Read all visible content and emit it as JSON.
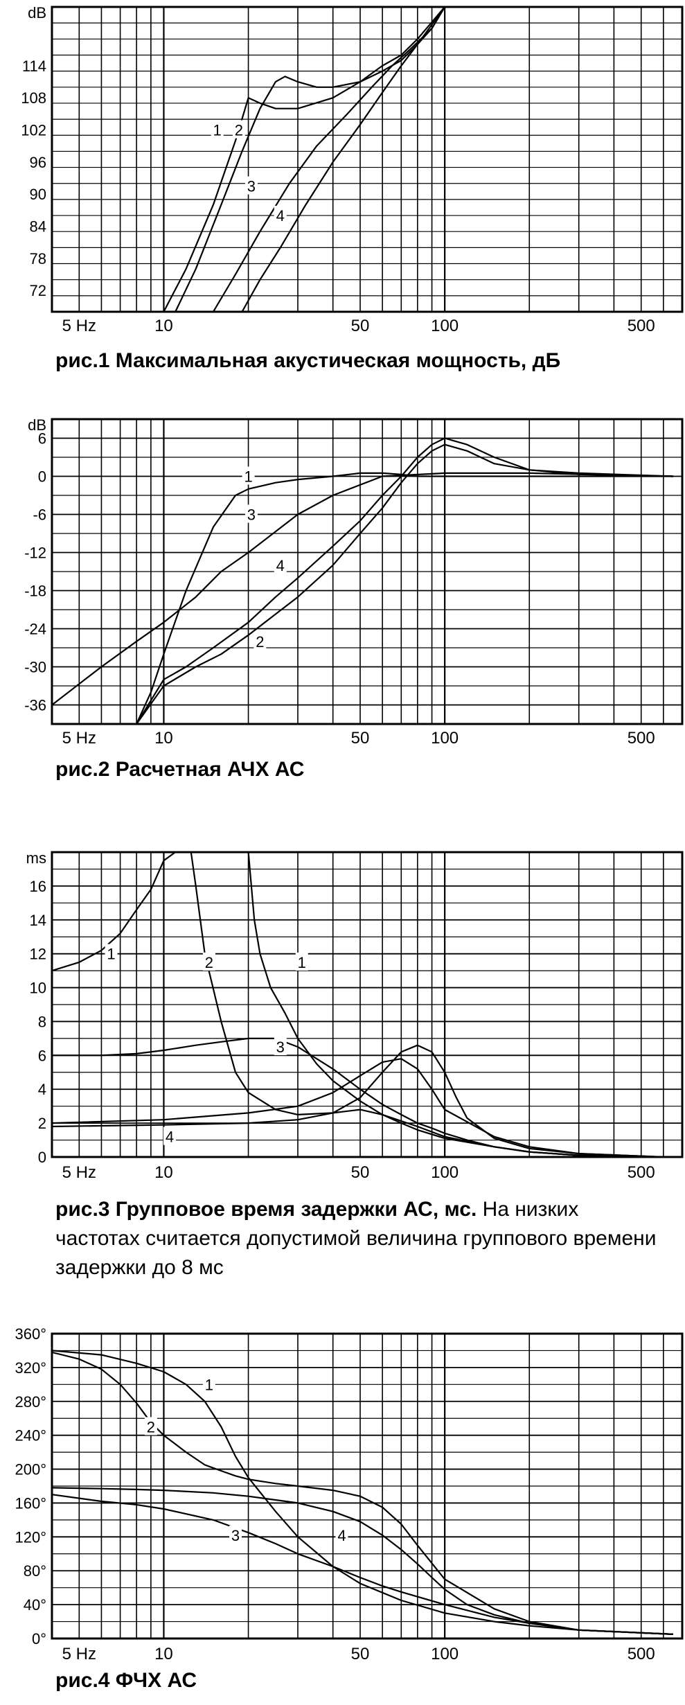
{
  "chart_data": [
    {
      "type": "line",
      "id": "fig1",
      "title": "рис.1  Максимальная акустическая мощность,  дБ",
      "xscale": "log",
      "xlim": [
        4,
        700
      ],
      "ylim": [
        68,
        125
      ],
      "xticks": [
        {
          "v": 5,
          "label": "5 Hz"
        },
        {
          "v": 10,
          "label": "10"
        },
        {
          "v": 50,
          "label": "50"
        },
        {
          "v": 100,
          "label": "100"
        },
        {
          "v": 500,
          "label": "500"
        }
      ],
      "yunit": "dB",
      "yticks": [
        {
          "v": 114,
          "label": "114"
        },
        {
          "v": 108,
          "label": "108"
        },
        {
          "v": 102,
          "label": "102"
        },
        {
          "v": 96,
          "label": "96"
        },
        {
          "v": 90,
          "label": "90"
        },
        {
          "v": 84,
          "label": "84"
        },
        {
          "v": 78,
          "label": "78"
        },
        {
          "v": 72,
          "label": "72"
        }
      ],
      "series": [
        {
          "name": "1",
          "label_at": [
            15.5,
            102
          ],
          "x": [
            10,
            12,
            15,
            18,
            20,
            22,
            25,
            30,
            40,
            50,
            60,
            70,
            80,
            100
          ],
          "y": [
            68,
            76,
            88,
            100,
            108,
            107,
            106,
            106,
            108,
            111,
            114,
            116,
            119,
            125
          ]
        },
        {
          "name": "2",
          "label_at": [
            18.5,
            102
          ],
          "x": [
            11,
            13,
            16,
            19,
            22,
            25,
            27,
            30,
            35,
            40,
            50,
            60,
            70,
            80,
            100
          ],
          "y": [
            68,
            76,
            88,
            98,
            106,
            111,
            112,
            111,
            110,
            110,
            111,
            113,
            115,
            118,
            125
          ]
        },
        {
          "name": "3",
          "label_at": [
            20.5,
            91.5
          ],
          "x": [
            15,
            18,
            22,
            28,
            35,
            45,
            55,
            65,
            75,
            90,
            100
          ],
          "y": [
            68,
            75,
            83,
            92,
            99,
            105,
            110,
            114,
            117,
            121,
            125
          ]
        },
        {
          "name": "4",
          "label_at": [
            26,
            86
          ],
          "x": [
            19,
            22,
            26,
            32,
            40,
            50,
            60,
            70,
            80,
            90,
            100
          ],
          "y": [
            68,
            74,
            80,
            88,
            96,
            103,
            109,
            114,
            118,
            121,
            125
          ]
        }
      ],
      "grid": true
    },
    {
      "type": "line",
      "id": "fig2",
      "title": "рис.2 Расчетная АЧХ АС",
      "xscale": "log",
      "xlim": [
        4,
        700
      ],
      "ylim": [
        -39,
        9
      ],
      "xticks": [
        {
          "v": 5,
          "label": "5 Hz"
        },
        {
          "v": 10,
          "label": "10"
        },
        {
          "v": 50,
          "label": "50"
        },
        {
          "v": 100,
          "label": "100"
        },
        {
          "v": 500,
          "label": "500"
        }
      ],
      "yunit": "dB",
      "yticks": [
        {
          "v": 6,
          "label": "6"
        },
        {
          "v": 0,
          "label": "0"
        },
        {
          "v": -6,
          "label": "-6"
        },
        {
          "v": -12,
          "label": "-12"
        },
        {
          "v": -18,
          "label": "-18"
        },
        {
          "v": -24,
          "label": "-24"
        },
        {
          "v": -30,
          "label": "-30"
        },
        {
          "v": -36,
          "label": "-36"
        }
      ],
      "series": [
        {
          "name": "1",
          "label_at": [
            20,
            0
          ],
          "x": [
            4,
            6,
            8,
            10,
            13,
            16,
            20,
            30,
            40,
            60,
            100,
            200,
            400,
            650
          ],
          "y": [
            -36,
            -30,
            -26,
            -23,
            -19,
            -15,
            -12,
            -6,
            -3,
            0,
            0.5,
            0.5,
            0.2,
            0
          ]
        },
        {
          "name": "2",
          "label_at": [
            22,
            -26
          ],
          "x": [
            8,
            10,
            13,
            16,
            20,
            30,
            40,
            50,
            60,
            70,
            80,
            90,
            100,
            120,
            150,
            200,
            300,
            650
          ],
          "y": [
            -39,
            -33,
            -30,
            -28,
            -25,
            -19,
            -14,
            -9,
            -5,
            -1,
            2,
            4,
            5,
            4,
            2,
            1,
            0.5,
            0
          ]
        },
        {
          "name": "3",
          "label_at": [
            20.5,
            -6
          ],
          "x": [
            8,
            9,
            10,
            12,
            15,
            18,
            20,
            25,
            30,
            40,
            50,
            60,
            70,
            80,
            100,
            150,
            300,
            650
          ],
          "y": [
            -39,
            -34,
            -28,
            -18,
            -8,
            -3,
            -2,
            -1,
            -0.5,
            0,
            0.5,
            0.5,
            0.3,
            0,
            0,
            0,
            0,
            0
          ]
        },
        {
          "name": "4",
          "label_at": [
            26,
            -14
          ],
          "x": [
            8,
            10,
            12,
            15,
            20,
            25,
            30,
            40,
            50,
            60,
            70,
            80,
            90,
            100,
            120,
            150,
            200,
            300,
            650
          ],
          "y": [
            -39,
            -32,
            -30,
            -27,
            -23,
            -19,
            -16,
            -11,
            -7,
            -3,
            0,
            3,
            5,
            6,
            5,
            3,
            1,
            0.3,
            0
          ]
        }
      ],
      "grid": true
    },
    {
      "type": "line",
      "id": "fig3",
      "title": "рис.3 Групповое время задержки АС, мс.",
      "description": "На низких частотах считается допустимой величина группового времени задержки до 8 мс",
      "xscale": "log",
      "xlim": [
        4,
        700
      ],
      "ylim": [
        0,
        18
      ],
      "xticks": [
        {
          "v": 5,
          "label": "5 Hz"
        },
        {
          "v": 10,
          "label": "10"
        },
        {
          "v": 50,
          "label": "50"
        },
        {
          "v": 100,
          "label": "100"
        },
        {
          "v": 500,
          "label": "500"
        }
      ],
      "yunit": "ms",
      "yticks": [
        {
          "v": 16,
          "label": "16"
        },
        {
          "v": 14,
          "label": "14"
        },
        {
          "v": 12,
          "label": "12"
        },
        {
          "v": 10,
          "label": "10"
        },
        {
          "v": 8,
          "label": "8"
        },
        {
          "v": 6,
          "label": "6"
        },
        {
          "v": 4,
          "label": "4"
        },
        {
          "v": 2,
          "label": "2"
        },
        {
          "v": 0,
          "label": "0"
        }
      ],
      "series": [
        {
          "name": "1",
          "label_at": [
            6.5,
            12
          ],
          "x": [
            4,
            5,
            6,
            7,
            8,
            9,
            10,
            11,
            12
          ],
          "y": [
            11,
            11.5,
            12.2,
            13.2,
            14.6,
            15.8,
            17.5,
            18,
            18
          ]
        },
        {
          "name": "2",
          "label_at": [
            14.5,
            11.5
          ],
          "x": [
            12.5,
            13,
            14,
            16,
            18,
            20,
            25,
            30,
            40,
            50,
            60,
            80,
            100,
            150,
            200,
            300,
            600
          ],
          "y": [
            18,
            16,
            12,
            8,
            5,
            3.8,
            2.8,
            2.5,
            2.6,
            2.8,
            2.5,
            1.8,
            1.2,
            0.6,
            0.3,
            0.1,
            0
          ]
        },
        {
          "name": "1",
          "label_at": [
            31,
            11.5
          ],
          "x": [
            20,
            21,
            22,
            24,
            27,
            30,
            35,
            40,
            50,
            60,
            70,
            80,
            100,
            150,
            200,
            300,
            600
          ],
          "y": [
            18,
            14,
            12,
            10,
            8.5,
            7,
            5.5,
            4.5,
            3.3,
            2.5,
            2,
            1.6,
            1.1,
            0.6,
            0.3,
            0.1,
            0
          ]
        },
        {
          "name": "3",
          "label_at": [
            26,
            6.5
          ],
          "x": [
            4,
            6,
            8,
            10,
            13,
            16,
            20,
            25,
            30,
            40,
            50,
            60,
            70,
            80,
            90,
            100,
            120,
            150,
            200,
            300,
            600
          ],
          "y": [
            6,
            6,
            6.1,
            6.3,
            6.6,
            6.8,
            7,
            7,
            6.5,
            5.2,
            4,
            3.1,
            2.5,
            2,
            1.7,
            1.4,
            1,
            0.6,
            0.3,
            0.1,
            0
          ]
        },
        {
          "name": "4",
          "label_at": [
            10.5,
            1.2
          ],
          "x": [
            4,
            10,
            20,
            30,
            40,
            50,
            60,
            70,
            80,
            90,
            100,
            110,
            120,
            150,
            200,
            300,
            600
          ],
          "y": [
            1.8,
            1.9,
            2,
            2.2,
            2.6,
            3.5,
            5,
            6.2,
            6.6,
            6.2,
            5,
            3.5,
            2.3,
            1.1,
            0.5,
            0.2,
            0
          ]
        },
        {
          "name": "",
          "x": [
            4,
            10,
            20,
            30,
            40,
            50,
            60,
            70,
            80,
            90,
            100,
            150,
            200,
            300,
            600
          ],
          "y": [
            2,
            2.2,
            2.6,
            3,
            3.8,
            4.8,
            5.6,
            5.8,
            5.2,
            4,
            2.8,
            1.2,
            0.6,
            0.2,
            0
          ]
        }
      ],
      "grid": true
    },
    {
      "type": "line",
      "id": "fig4",
      "title": "рис.4 ФЧХ АС",
      "xscale": "log",
      "xlim": [
        4,
        700
      ],
      "ylim": [
        0,
        360
      ],
      "xticks": [
        {
          "v": 5,
          "label": "5 Hz"
        },
        {
          "v": 10,
          "label": "10"
        },
        {
          "v": 50,
          "label": "50"
        },
        {
          "v": 100,
          "label": "100"
        },
        {
          "v": 500,
          "label": "500"
        }
      ],
      "yunit": "",
      "yticks": [
        {
          "v": 360,
          "label": "360°"
        },
        {
          "v": 320,
          "label": "320°"
        },
        {
          "v": 280,
          "label": "280°"
        },
        {
          "v": 240,
          "label": "240°"
        },
        {
          "v": 200,
          "label": "200°"
        },
        {
          "v": 160,
          "label": "160°"
        },
        {
          "v": 120,
          "label": "120°"
        },
        {
          "v": 80,
          "label": "80°"
        },
        {
          "v": 40,
          "label": "40°"
        },
        {
          "v": 0,
          "label": "0°"
        }
      ],
      "series": [
        {
          "name": "1",
          "label_at": [
            14.5,
            300
          ],
          "x": [
            4,
            6,
            8,
            10,
            12,
            14,
            16,
            18,
            20,
            25,
            30,
            40,
            50,
            70,
            100,
            150,
            200,
            300,
            650
          ],
          "y": [
            340,
            335,
            325,
            315,
            300,
            280,
            250,
            215,
            190,
            150,
            120,
            85,
            65,
            45,
            30,
            20,
            15,
            10,
            5
          ]
        },
        {
          "name": "2",
          "label_at": [
            9,
            250
          ],
          "x": [
            4,
            5,
            6,
            7,
            8,
            9,
            10,
            12,
            14,
            16,
            18,
            20,
            25,
            30,
            40,
            50,
            60,
            70,
            80,
            100,
            150,
            200,
            300,
            650
          ],
          "y": [
            338,
            330,
            318,
            300,
            278,
            255,
            240,
            220,
            205,
            198,
            192,
            188,
            183,
            180,
            175,
            168,
            155,
            135,
            110,
            70,
            35,
            20,
            10,
            5
          ]
        },
        {
          "name": "3",
          "label_at": [
            18,
            122
          ],
          "x": [
            4,
            6,
            8,
            10,
            15,
            20,
            25,
            30,
            40,
            50,
            60,
            70,
            100,
            150,
            200,
            300,
            650
          ],
          "y": [
            170,
            162,
            158,
            153,
            140,
            125,
            112,
            100,
            85,
            72,
            62,
            55,
            40,
            25,
            18,
            10,
            5
          ]
        },
        {
          "name": "4",
          "label_at": [
            43,
            122
          ],
          "x": [
            4,
            6,
            8,
            10,
            15,
            20,
            30,
            40,
            50,
            60,
            70,
            80,
            90,
            100,
            120,
            150,
            200,
            300,
            650
          ],
          "y": [
            178,
            177,
            176,
            175,
            172,
            168,
            160,
            150,
            138,
            122,
            105,
            88,
            72,
            58,
            40,
            28,
            18,
            10,
            5
          ]
        }
      ],
      "grid": true
    }
  ]
}
